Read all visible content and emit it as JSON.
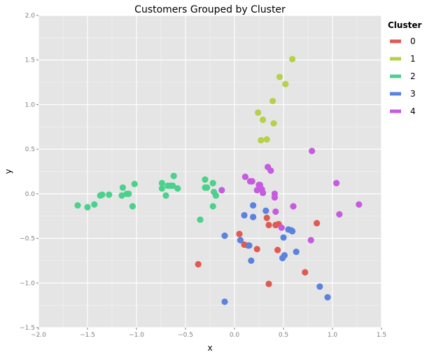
{
  "chart_data": {
    "type": "scatter",
    "title": "Customers Grouped by Cluster",
    "xlabel": "x",
    "ylabel": "y",
    "xlim": [
      -2.0,
      1.5
    ],
    "ylim": [
      -1.5,
      2.0
    ],
    "x_ticks": [
      "−2.0",
      "−1.5",
      "−1.0",
      "−0.5",
      "0.0",
      "0.5",
      "1.0",
      "1.5"
    ],
    "y_ticks": [
      "−1.5",
      "−1.0",
      "−0.5",
      "0.0",
      "0.5",
      "1.0",
      "1.5",
      "2.0"
    ],
    "x_tick_values": [
      -2.0,
      -1.5,
      -1.0,
      -0.5,
      0.0,
      0.5,
      1.0,
      1.5
    ],
    "y_tick_values": [
      -1.5,
      -1.0,
      -0.5,
      0.0,
      0.5,
      1.0,
      1.5,
      2.0
    ],
    "grid": true,
    "panel_background": "#e5e5e5",
    "legend": {
      "title": "Cluster",
      "placement": "right"
    },
    "series": [
      {
        "name": "0",
        "color": "#e05a52",
        "points": [
          [
            0.05,
            -0.45
          ],
          [
            0.1,
            -0.57
          ],
          [
            0.14,
            -0.58
          ],
          [
            0.23,
            -0.62
          ],
          [
            -0.37,
            -0.79
          ],
          [
            0.33,
            -0.27
          ],
          [
            0.35,
            -0.35
          ],
          [
            0.42,
            -0.35
          ],
          [
            0.45,
            -0.34
          ],
          [
            0.44,
            -0.63
          ],
          [
            0.35,
            -1.01
          ],
          [
            0.72,
            -0.88
          ],
          [
            0.84,
            -0.33
          ]
        ]
      },
      {
        "name": "1",
        "color": "#b5d14a",
        "points": [
          [
            0.59,
            1.51
          ],
          [
            0.46,
            1.31
          ],
          [
            0.52,
            1.23
          ],
          [
            0.39,
            1.04
          ],
          [
            0.24,
            0.91
          ],
          [
            0.29,
            0.83
          ],
          [
            0.4,
            0.79
          ],
          [
            0.27,
            0.6
          ],
          [
            0.33,
            0.61
          ]
        ]
      },
      {
        "name": "2",
        "color": "#4bd18c",
        "points": [
          [
            -1.6,
            -0.13
          ],
          [
            -1.5,
            -0.15
          ],
          [
            -1.43,
            -0.12
          ],
          [
            -1.37,
            -0.02
          ],
          [
            -1.35,
            -0.01
          ],
          [
            -1.28,
            -0.01
          ],
          [
            -1.15,
            -0.02
          ],
          [
            -1.14,
            0.07
          ],
          [
            -1.1,
            0.0
          ],
          [
            -1.08,
            0.0
          ],
          [
            -1.04,
            -0.14
          ],
          [
            -1.02,
            0.11
          ],
          [
            -0.74,
            0.12
          ],
          [
            -0.74,
            0.06
          ],
          [
            -0.7,
            -0.02
          ],
          [
            -0.68,
            0.09
          ],
          [
            -0.65,
            0.09
          ],
          [
            -0.63,
            0.09
          ],
          [
            -0.62,
            0.2
          ],
          [
            -0.58,
            0.06
          ],
          [
            -0.3,
            0.16
          ],
          [
            -0.3,
            0.07
          ],
          [
            -0.28,
            0.07
          ],
          [
            -0.22,
            0.12
          ],
          [
            -0.21,
            0.02
          ],
          [
            -0.19,
            -0.02
          ],
          [
            -0.22,
            -0.14
          ],
          [
            -0.35,
            -0.29
          ]
        ]
      },
      {
        "name": "3",
        "color": "#5a82de",
        "points": [
          [
            0.1,
            -0.24
          ],
          [
            0.19,
            -0.26
          ],
          [
            0.19,
            -0.13
          ],
          [
            0.32,
            -0.19
          ],
          [
            -0.1,
            -0.47
          ],
          [
            0.06,
            -0.52
          ],
          [
            0.15,
            -0.58
          ],
          [
            0.17,
            -0.75
          ],
          [
            -0.1,
            -1.21
          ],
          [
            0.5,
            -0.49
          ],
          [
            0.55,
            -0.4
          ],
          [
            0.58,
            -0.41
          ],
          [
            0.59,
            -0.42
          ],
          [
            0.63,
            -0.65
          ],
          [
            0.51,
            -0.69
          ],
          [
            0.49,
            -0.72
          ],
          [
            0.87,
            -1.04
          ],
          [
            0.95,
            -1.16
          ]
        ]
      },
      {
        "name": "4",
        "color": "#c65be0",
        "points": [
          [
            -0.13,
            0.04
          ],
          [
            0.11,
            0.19
          ],
          [
            0.16,
            0.14
          ],
          [
            0.18,
            0.14
          ],
          [
            0.23,
            0.04
          ],
          [
            0.25,
            0.1
          ],
          [
            0.26,
            0.1
          ],
          [
            0.28,
            0.05
          ],
          [
            0.29,
            0.01
          ],
          [
            0.34,
            0.3
          ],
          [
            0.37,
            0.26
          ],
          [
            0.41,
            0.0
          ],
          [
            0.41,
            -0.04
          ],
          [
            0.42,
            -0.2
          ],
          [
            0.48,
            -0.38
          ],
          [
            0.6,
            -0.14
          ],
          [
            0.79,
            0.48
          ],
          [
            0.78,
            -0.52
          ],
          [
            1.04,
            0.12
          ],
          [
            1.07,
            -0.23
          ],
          [
            1.27,
            -0.12
          ]
        ]
      }
    ]
  }
}
